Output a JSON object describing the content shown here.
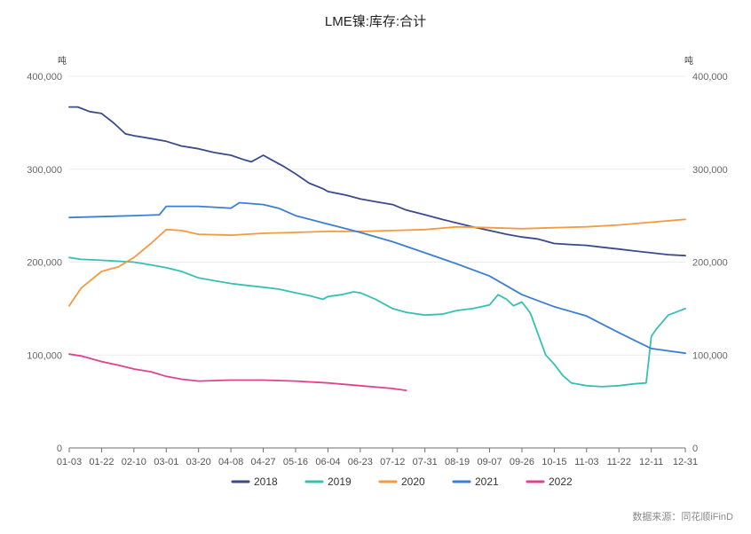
{
  "title": "LME镍:库存:合计",
  "source": "数据来源：同花顺iFinD",
  "chart_data": {
    "type": "line",
    "title": "LME镍:库存:合计",
    "left_axis_unit": "吨",
    "right_axis_unit": "吨",
    "ylim": [
      0,
      400000
    ],
    "y_ticks": [
      0,
      100000,
      200000,
      300000,
      400000
    ],
    "y_tick_labels": [
      "0",
      "100,000",
      "200,000",
      "300,000",
      "400,000"
    ],
    "x_ticks": [
      "01-03",
      "01-22",
      "02-10",
      "03-01",
      "03-20",
      "04-08",
      "04-27",
      "05-16",
      "06-04",
      "06-23",
      "07-12",
      "07-31",
      "08-19",
      "09-07",
      "09-26",
      "10-15",
      "11-03",
      "11-22",
      "12-11",
      "12-31"
    ],
    "grid": true,
    "legend_position": "bottom",
    "series": [
      {
        "name": "2018",
        "color": "#3a4a8c",
        "x": [
          "01-03",
          "01-08",
          "01-15",
          "01-22",
          "01-29",
          "02-05",
          "02-10",
          "02-20",
          "03-01",
          "03-10",
          "03-20",
          "03-29",
          "04-08",
          "04-16",
          "04-20",
          "04-27",
          "05-02",
          "05-09",
          "05-16",
          "05-24",
          "06-01",
          "06-04",
          "06-15",
          "06-23",
          "07-02",
          "07-12",
          "07-20",
          "07-31",
          "08-10",
          "08-19",
          "08-28",
          "09-07",
          "09-17",
          "09-26",
          "10-05",
          "10-15",
          "10-24",
          "11-03",
          "11-12",
          "11-22",
          "12-01",
          "12-11",
          "12-21",
          "12-31"
        ],
        "y": [
          367000,
          367000,
          362000,
          360000,
          350000,
          338000,
          336000,
          333000,
          330000,
          325000,
          322000,
          318000,
          315000,
          310000,
          308000,
          315000,
          310000,
          303000,
          295000,
          285000,
          279000,
          276000,
          272000,
          268000,
          265000,
          262000,
          256000,
          251000,
          246000,
          242000,
          238000,
          234000,
          230000,
          227000,
          225000,
          220000,
          219000,
          218000,
          216000,
          214000,
          212000,
          210000,
          208000,
          207000
        ]
      },
      {
        "name": "2019",
        "color": "#36c0b4",
        "x": [
          "01-03",
          "01-10",
          "01-22",
          "02-01",
          "02-10",
          "02-20",
          "03-01",
          "03-10",
          "03-20",
          "03-29",
          "04-08",
          "04-17",
          "04-27",
          "05-06",
          "05-16",
          "05-24",
          "06-01",
          "06-04",
          "06-12",
          "06-19",
          "06-23",
          "07-02",
          "07-12",
          "07-20",
          "07-31",
          "08-10",
          "08-19",
          "08-28",
          "09-07",
          "09-12",
          "09-17",
          "09-21",
          "09-26",
          "10-01",
          "10-05",
          "10-10",
          "10-15",
          "10-20",
          "10-25",
          "11-03",
          "11-12",
          "11-22",
          "12-01",
          "12-08",
          "12-11",
          "12-14",
          "12-21",
          "12-31"
        ],
        "y": [
          205000,
          203000,
          202000,
          201000,
          200000,
          197000,
          194000,
          190000,
          183000,
          180000,
          177000,
          175000,
          173000,
          171000,
          167000,
          164000,
          160000,
          163000,
          165000,
          168000,
          167000,
          160000,
          150000,
          146000,
          143000,
          144000,
          148000,
          150000,
          154000,
          165000,
          160000,
          153000,
          157000,
          145000,
          125000,
          100000,
          90000,
          78000,
          70000,
          67000,
          66000,
          67000,
          69000,
          70000,
          120000,
          128000,
          143000,
          150000
        ]
      },
      {
        "name": "2020",
        "color": "#f39a42",
        "x": [
          "01-03",
          "01-10",
          "01-22",
          "02-01",
          "02-10",
          "02-20",
          "03-01",
          "03-10",
          "03-20",
          "04-08",
          "04-27",
          "05-16",
          "06-04",
          "06-23",
          "07-12",
          "07-31",
          "08-19",
          "09-07",
          "09-26",
          "10-15",
          "11-03",
          "11-22",
          "12-11",
          "12-31"
        ],
        "y": [
          153000,
          172000,
          190000,
          195000,
          205000,
          220000,
          235000,
          234000,
          230000,
          229000,
          231000,
          232000,
          233000,
          233000,
          234000,
          235000,
          238000,
          237000,
          236000,
          237000,
          238000,
          240000,
          243000,
          246000
        ]
      },
      {
        "name": "2021",
        "color": "#3b7fd4",
        "x": [
          "01-03",
          "01-22",
          "02-10",
          "02-25",
          "03-01",
          "03-20",
          "04-08",
          "04-13",
          "04-27",
          "05-06",
          "05-16",
          "06-04",
          "06-23",
          "07-12",
          "07-31",
          "08-19",
          "09-07",
          "09-26",
          "10-15",
          "11-03",
          "11-22",
          "12-11",
          "12-31"
        ],
        "y": [
          248000,
          249000,
          250000,
          251000,
          260000,
          260000,
          258000,
          264000,
          262000,
          258000,
          250000,
          241000,
          232000,
          222000,
          210000,
          198000,
          185000,
          165000,
          152000,
          142000,
          124000,
          107000,
          102000
        ]
      },
      {
        "name": "2022",
        "color": "#e0428f",
        "x": [
          "01-03",
          "01-10",
          "01-22",
          "02-01",
          "02-10",
          "02-20",
          "03-01",
          "03-10",
          "03-20",
          "04-08",
          "04-27",
          "05-16",
          "06-04",
          "06-23",
          "07-12",
          "07-20"
        ],
        "y": [
          101000,
          99000,
          93000,
          89000,
          85000,
          82000,
          77000,
          74000,
          72000,
          73000,
          73000,
          72000,
          70000,
          67000,
          64000,
          62000
        ]
      }
    ]
  }
}
